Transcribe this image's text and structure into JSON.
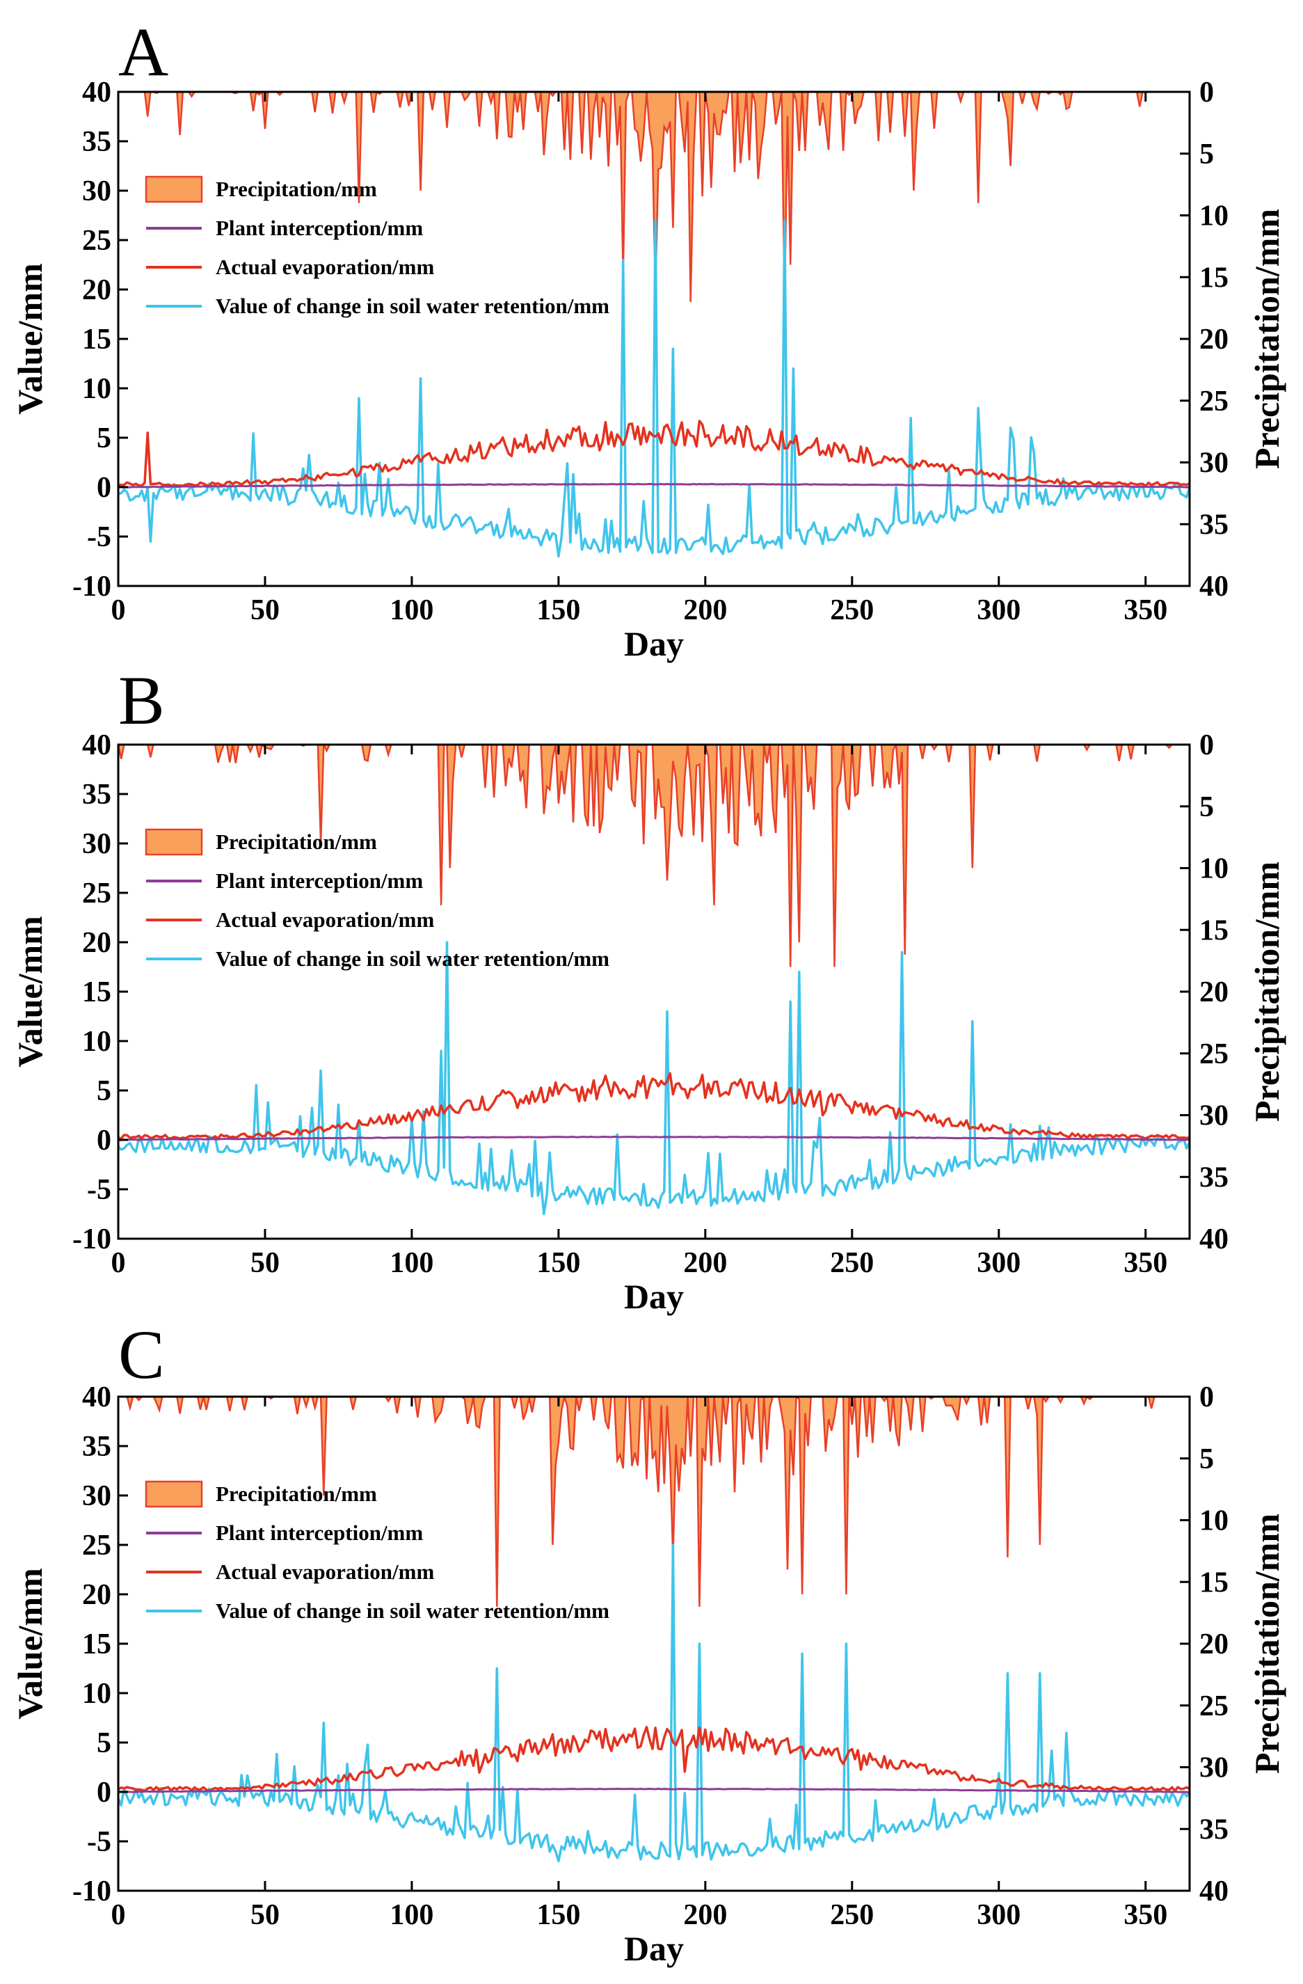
{
  "chart_data": [
    {
      "type": "line",
      "panel_label": "A",
      "xlabel": "Day",
      "ylabel": "Value/mm",
      "y2label": "Precipitation/mm",
      "xlim": [
        0,
        365
      ],
      "ylim": [
        -10,
        40
      ],
      "y2lim": [
        0,
        40
      ],
      "y2_inverted": true,
      "xticks": [
        "0",
        "50",
        "100",
        "150",
        "200",
        "250",
        "300",
        "350"
      ],
      "yticks": [
        "-10",
        "-5",
        "0",
        "5",
        "10",
        "15",
        "20",
        "25",
        "30",
        "35",
        "40"
      ],
      "y2ticks": [
        "0",
        "5",
        "10",
        "15",
        "20",
        "25",
        "30",
        "35",
        "40"
      ],
      "legend": [
        "Precipitation/mm",
        "Plant interception/mm",
        "Actual evaporation/mm",
        "Value of change in soil water retention/mm"
      ],
      "colors": {
        "precipitation_fill": "#f9a05a",
        "precipitation_line": "#e8402a",
        "interception": "#8e3c96",
        "evaporation": "#e4321f",
        "soil_water": "#3fc4ec"
      },
      "series": [
        {
          "name": "Precipitation/mm",
          "axis": "right",
          "points": [
            [
              10,
              2
            ],
            [
              21,
              3.5
            ],
            [
              50,
              3
            ],
            [
              82,
              9
            ],
            [
              103,
              8
            ],
            [
              172,
              15
            ],
            [
              183,
              16
            ],
            [
              189,
              11
            ],
            [
              195,
              17
            ],
            [
              227,
              17
            ],
            [
              229,
              14
            ],
            [
              271,
              8
            ],
            [
              293,
              9
            ],
            [
              304,
              6
            ]
          ]
        },
        {
          "name": "Plant interception/mm",
          "axis": "left",
          "points": [
            [
              0,
              0
            ],
            [
              100,
              0.1
            ],
            [
              150,
              0.3
            ],
            [
              250,
              0.2
            ],
            [
              365,
              0
            ]
          ]
        },
        {
          "name": "Actual evaporation/mm",
          "axis": "left",
          "points": [
            [
              0,
              0.3
            ],
            [
              10,
              5.5
            ],
            [
              12,
              0.5
            ],
            [
              50,
              0.8
            ],
            [
              100,
              2.5
            ],
            [
              150,
              6.4
            ],
            [
              170,
              1
            ],
            [
              200,
              4.5
            ],
            [
              250,
              3
            ],
            [
              300,
              1.5
            ],
            [
              365,
              0.3
            ]
          ]
        },
        {
          "name": "Value of change in soil water retention/mm",
          "axis": "left",
          "points": [
            [
              0,
              -0.5
            ],
            [
              11,
              -5.5
            ],
            [
              21,
              3
            ],
            [
              50,
              -1
            ],
            [
              82,
              9
            ],
            [
              103,
              11
            ],
            [
              150,
              -7
            ],
            [
              172,
              23
            ],
            [
              183,
              27
            ],
            [
              189,
              14
            ],
            [
              227,
              27
            ],
            [
              230,
              12
            ],
            [
              270,
              7
            ],
            [
              293,
              8
            ],
            [
              304,
              6
            ],
            [
              365,
              -0.5
            ]
          ]
        }
      ]
    },
    {
      "type": "line",
      "panel_label": "B",
      "xlabel": "Day",
      "ylabel": "Value/mm",
      "y2label": "Precipitation/mm",
      "xlim": [
        0,
        365
      ],
      "ylim": [
        -10,
        40
      ],
      "y2lim": [
        0,
        40
      ],
      "y2_inverted": true,
      "xticks": [
        "0",
        "50",
        "100",
        "150",
        "200",
        "250",
        "300",
        "350"
      ],
      "yticks": [
        "-10",
        "-5",
        "0",
        "5",
        "10",
        "15",
        "20",
        "25",
        "30",
        "35",
        "40"
      ],
      "y2ticks": [
        "0",
        "5",
        "10",
        "15",
        "20",
        "25",
        "30",
        "35",
        "40"
      ],
      "legend": [
        "Precipitation/mm",
        "Plant interception/mm",
        "Actual evaporation/mm",
        "Value of change in soil water retention/mm"
      ],
      "colors": {
        "precipitation_fill": "#f9a05a",
        "precipitation_line": "#e8402a",
        "interception": "#8e3c96",
        "evaporation": "#e4321f",
        "soil_water": "#3fc4ec"
      },
      "series": [
        {
          "name": "Precipitation/mm",
          "axis": "right",
          "points": [
            [
              69,
              8
            ],
            [
              110,
              13
            ],
            [
              113,
              10
            ],
            [
              187,
              11
            ],
            [
              203,
              13
            ],
            [
              229,
              18
            ],
            [
              232,
              16
            ],
            [
              244,
              18
            ],
            [
              268,
              17
            ],
            [
              291,
              10
            ]
          ]
        },
        {
          "name": "Plant interception/mm",
          "axis": "left",
          "points": [
            [
              0,
              0
            ],
            [
              100,
              0.1
            ],
            [
              150,
              0.3
            ],
            [
              250,
              0.2
            ],
            [
              365,
              0
            ]
          ]
        },
        {
          "name": "Actual evaporation/mm",
          "axis": "left",
          "points": [
            [
              0,
              0.3
            ],
            [
              50,
              0.5
            ],
            [
              100,
              3
            ],
            [
              145,
              7.5
            ],
            [
              170,
              2.5
            ],
            [
              220,
              5
            ],
            [
              250,
              4
            ],
            [
              300,
              1.5
            ],
            [
              365,
              0.3
            ]
          ]
        },
        {
          "name": "Value of change in soil water retention/mm",
          "axis": "left",
          "points": [
            [
              0,
              -0.5
            ],
            [
              26,
              2.5
            ],
            [
              69,
              7
            ],
            [
              110,
              9
            ],
            [
              112,
              20
            ],
            [
              145,
              -7.5
            ],
            [
              187,
              13
            ],
            [
              229,
              14
            ],
            [
              232,
              17
            ],
            [
              267,
              19
            ],
            [
              291,
              12
            ],
            [
              365,
              -0.5
            ]
          ]
        }
      ]
    },
    {
      "type": "line",
      "panel_label": "C",
      "xlabel": "Day",
      "ylabel": "Value/mm",
      "y2label": "Precipitation/mm",
      "xlim": [
        0,
        365
      ],
      "ylim": [
        -10,
        40
      ],
      "y2lim": [
        0,
        40
      ],
      "y2_inverted": true,
      "xticks": [
        "0",
        "50",
        "100",
        "150",
        "200",
        "250",
        "300",
        "350"
      ],
      "yticks": [
        "-10",
        "-5",
        "0",
        "5",
        "10",
        "15",
        "20",
        "25",
        "30",
        "35",
        "40"
      ],
      "y2ticks": [
        "0",
        "5",
        "10",
        "15",
        "20",
        "25",
        "30",
        "35",
        "40"
      ],
      "legend": [
        "Precipitation/mm",
        "Plant interception/mm",
        "Actual evaporation/mm",
        "Value of change in soil water retention/mm"
      ],
      "colors": {
        "precipitation_fill": "#f9a05a",
        "precipitation_line": "#e8402a",
        "interception": "#8e3c96",
        "evaporation": "#e4321f",
        "soil_water": "#3fc4ec"
      },
      "series": [
        {
          "name": "Precipitation/mm",
          "axis": "right",
          "points": [
            [
              70,
              8
            ],
            [
              129,
              17
            ],
            [
              148,
              12
            ],
            [
              189,
              13
            ],
            [
              198,
              17
            ],
            [
              228,
              14
            ],
            [
              233,
              16
            ],
            [
              248,
              16
            ],
            [
              303,
              13
            ],
            [
              314,
              12
            ]
          ]
        },
        {
          "name": "Plant interception/mm",
          "axis": "left",
          "points": [
            [
              0,
              0
            ],
            [
              100,
              0.1
            ],
            [
              150,
              0.3
            ],
            [
              250,
              0.2
            ],
            [
              365,
              0
            ]
          ]
        },
        {
          "name": "Actual evaporation/mm",
          "axis": "left",
          "points": [
            [
              0,
              0.3
            ],
            [
              50,
              0.5
            ],
            [
              100,
              3
            ],
            [
              150,
              6.5
            ],
            [
              170,
              2.5
            ],
            [
              220,
              4
            ],
            [
              250,
              3
            ],
            [
              300,
              1.5
            ],
            [
              365,
              0.3
            ]
          ]
        },
        {
          "name": "Value of change in soil water retention/mm",
          "axis": "left",
          "points": [
            [
              0,
              -0.5
            ],
            [
              70,
              7
            ],
            [
              129,
              12.5
            ],
            [
              150,
              -7
            ],
            [
              189,
              25
            ],
            [
              198,
              15
            ],
            [
              233,
              14
            ],
            [
              248,
              15
            ],
            [
              303,
              12
            ],
            [
              314,
              12
            ],
            [
              365,
              -0.5
            ]
          ]
        }
      ]
    }
  ]
}
